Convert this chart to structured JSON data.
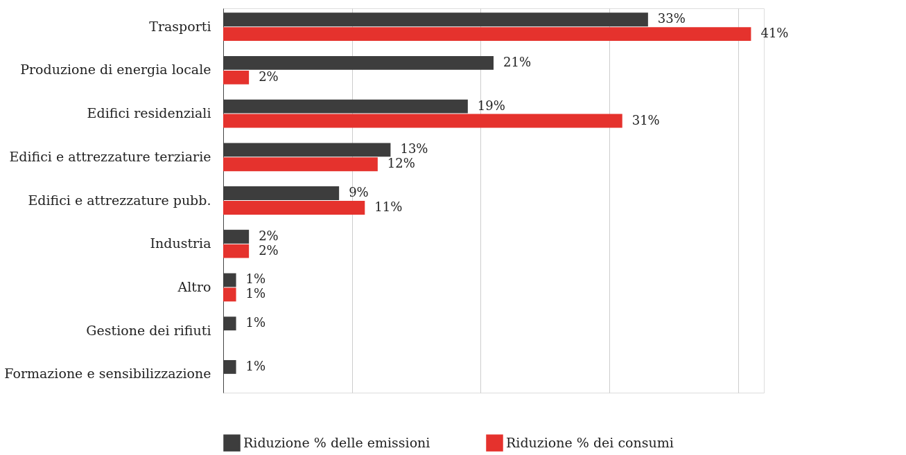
{
  "chart_data": {
    "type": "bar",
    "orientation": "horizontal",
    "categories": [
      "Trasporti",
      "Produzione di energia locale",
      "Edifici residenziali",
      "Edifici e attrezzature terziarie",
      "Edifici e attrezzature pubb.",
      "Industria",
      "Altro",
      "Gestione dei rifiuti",
      "Formazione e sensibilizzazione"
    ],
    "series": [
      {
        "name": "Riduzione % delle emissioni",
        "color": "#3d3d3d",
        "values": [
          33,
          21,
          19,
          13,
          9,
          2,
          1,
          1,
          1
        ],
        "value_labels": [
          "33%",
          "21%",
          "19%",
          "13%",
          "9%",
          "2%",
          "1%",
          "1%",
          "1%"
        ]
      },
      {
        "name": "Riduzione % dei consumi",
        "color": "#e5322d",
        "values": [
          41,
          2,
          31,
          12,
          11,
          2,
          1,
          null,
          null
        ],
        "value_labels": [
          "41%",
          "2%",
          "31%",
          "12%",
          "11%",
          "2%",
          "1%",
          null,
          null
        ]
      }
    ],
    "xlim": [
      0,
      42
    ],
    "xticks": [
      {
        "value": 0,
        "label": null
      },
      {
        "value": 10,
        "label": null
      },
      {
        "value": 20,
        "label": null
      },
      {
        "value": 30,
        "label": null
      },
      {
        "value": 40,
        "label": null
      }
    ],
    "grid": "x",
    "legend": "bottom",
    "tick_labels": "y"
  }
}
